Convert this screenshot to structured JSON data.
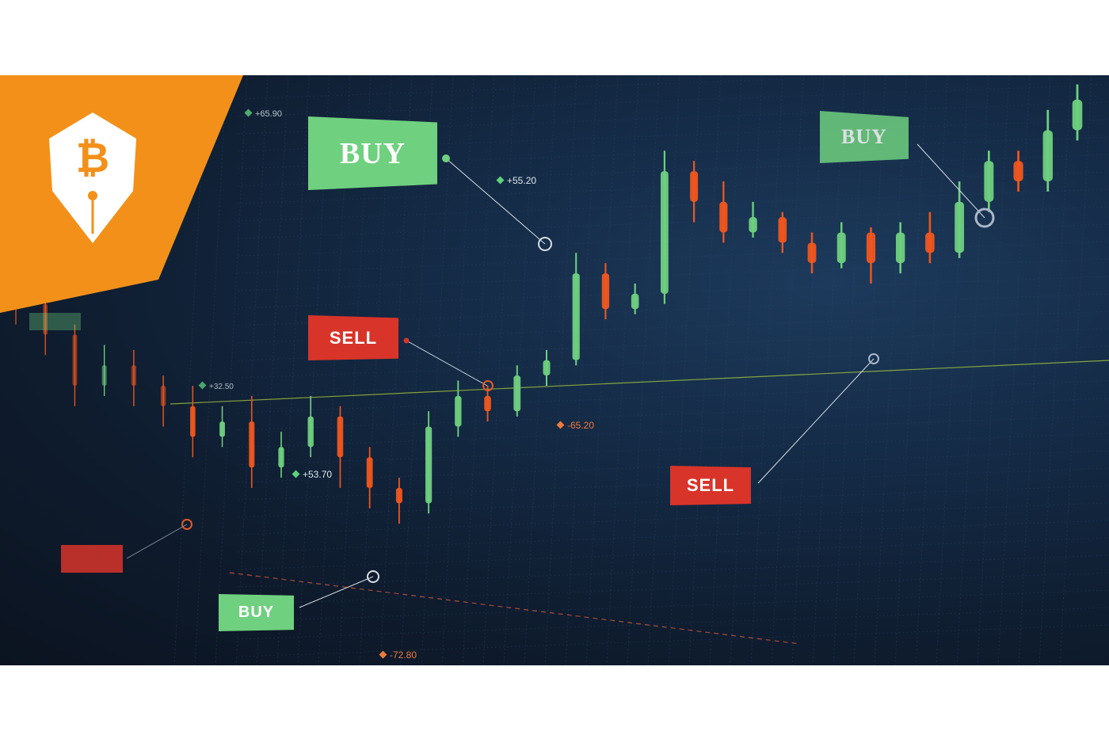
{
  "brand": {
    "accent": "#f39019",
    "mark_icon": "bitcoin-pen-icon"
  },
  "colors": {
    "up": "#6fd07f",
    "down": "#f0561e",
    "buy_tag": "#6fd07f",
    "sell_tag": "#d8342a",
    "trend": "#9fc23a"
  },
  "signals": {
    "buy_top": "BUY",
    "buy_far": "BUY",
    "buy_bottom": "BUY",
    "sell_mid": "SELL",
    "sell_right": "SELL"
  },
  "value_labels": {
    "v1": "+65.90",
    "v2": "+55.20",
    "v3": "+32.50",
    "v4": "+53.70",
    "v5": "-65.20",
    "v6": "-72.80"
  },
  "chart_data": {
    "type": "candlestick",
    "title": "",
    "xlabel": "",
    "ylabel": "",
    "ylim": [
      0,
      100
    ],
    "annotations": [
      "BUY",
      "SELL",
      "BUY",
      "SELL",
      "BUY",
      "+65.90",
      "+55.20",
      "+32.50",
      "+53.70",
      "-65.20",
      "-72.80"
    ],
    "candles": [
      {
        "o": 62,
        "c": 56,
        "h": 66,
        "l": 52
      },
      {
        "o": 56,
        "c": 50,
        "h": 59,
        "l": 46
      },
      {
        "o": 50,
        "c": 40,
        "h": 52,
        "l": 36
      },
      {
        "o": 40,
        "c": 44,
        "h": 48,
        "l": 38
      },
      {
        "o": 44,
        "c": 40,
        "h": 47,
        "l": 36
      },
      {
        "o": 40,
        "c": 36,
        "h": 42,
        "l": 32
      },
      {
        "o": 36,
        "c": 30,
        "h": 40,
        "l": 26
      },
      {
        "o": 30,
        "c": 33,
        "h": 36,
        "l": 28
      },
      {
        "o": 33,
        "c": 24,
        "h": 38,
        "l": 20
      },
      {
        "o": 24,
        "c": 28,
        "h": 31,
        "l": 22
      },
      {
        "o": 28,
        "c": 34,
        "h": 38,
        "l": 26
      },
      {
        "o": 34,
        "c": 26,
        "h": 36,
        "l": 20
      },
      {
        "o": 26,
        "c": 20,
        "h": 28,
        "l": 16
      },
      {
        "o": 20,
        "c": 17,
        "h": 22,
        "l": 13
      },
      {
        "o": 17,
        "c": 32,
        "h": 35,
        "l": 15
      },
      {
        "o": 32,
        "c": 38,
        "h": 41,
        "l": 30
      },
      {
        "o": 38,
        "c": 35,
        "h": 40,
        "l": 33
      },
      {
        "o": 35,
        "c": 42,
        "h": 44,
        "l": 34
      },
      {
        "o": 42,
        "c": 45,
        "h": 47,
        "l": 40
      },
      {
        "o": 45,
        "c": 62,
        "h": 66,
        "l": 44
      },
      {
        "o": 62,
        "c": 55,
        "h": 64,
        "l": 53
      },
      {
        "o": 55,
        "c": 58,
        "h": 60,
        "l": 54
      },
      {
        "o": 58,
        "c": 82,
        "h": 86,
        "l": 56
      },
      {
        "o": 82,
        "c": 76,
        "h": 84,
        "l": 72
      },
      {
        "o": 76,
        "c": 70,
        "h": 80,
        "l": 68
      },
      {
        "o": 70,
        "c": 73,
        "h": 76,
        "l": 69
      },
      {
        "o": 73,
        "c": 68,
        "h": 74,
        "l": 66
      },
      {
        "o": 68,
        "c": 64,
        "h": 70,
        "l": 62
      },
      {
        "o": 64,
        "c": 70,
        "h": 72,
        "l": 63
      },
      {
        "o": 70,
        "c": 64,
        "h": 71,
        "l": 60
      },
      {
        "o": 64,
        "c": 70,
        "h": 72,
        "l": 62
      },
      {
        "o": 70,
        "c": 66,
        "h": 74,
        "l": 64
      },
      {
        "o": 66,
        "c": 76,
        "h": 80,
        "l": 65
      },
      {
        "o": 76,
        "c": 84,
        "h": 86,
        "l": 74
      },
      {
        "o": 84,
        "c": 80,
        "h": 86,
        "l": 78
      },
      {
        "o": 80,
        "c": 90,
        "h": 94,
        "l": 78
      },
      {
        "o": 90,
        "c": 96,
        "h": 99,
        "l": 88
      }
    ]
  }
}
